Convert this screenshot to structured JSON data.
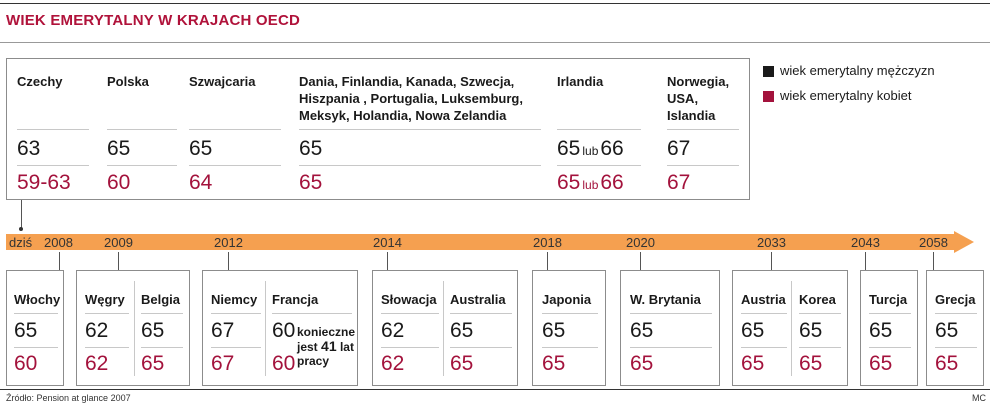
{
  "title": "WIEK EMERYTALNY W KRAJACH OECD",
  "legend": {
    "men_label": "wiek emerytalny mężczyzn",
    "women_label": "wiek emerytalny kobiet",
    "men_color": "#1a1a1a",
    "women_color": "#a3123c"
  },
  "top_countries": [
    {
      "name": "Czechy",
      "men": "63",
      "women": "59-63"
    },
    {
      "name": "Polska",
      "men": "65",
      "women": "60"
    },
    {
      "name": "Szwajcaria",
      "men": "65",
      "women": "64"
    },
    {
      "name": "Dania, Finlandia, Kanada, Szwecja, Hiszpania , Portugalia, Luksemburg, Meksyk, Holandia, Nowa Zelandia",
      "men": "65",
      "women": "65"
    },
    {
      "name": "Irlandia",
      "men_a": "65",
      "men_or": "lub",
      "men_b": "66",
      "women_a": "65",
      "women_or": "lub",
      "women_b": "66"
    },
    {
      "name": "Norwegia, USA, Islandia",
      "men": "67",
      "women": "67"
    }
  ],
  "timeline": {
    "start_label": "dziś",
    "years": [
      "2008",
      "2009",
      "2012",
      "2014",
      "2018",
      "2020",
      "2033",
      "2043",
      "2058"
    ],
    "arrow_color": "#f5a050"
  },
  "bottom_groups": [
    {
      "year": "2008",
      "countries": [
        {
          "name": "Włochy",
          "men": "65",
          "women": "60"
        }
      ]
    },
    {
      "year": "2009",
      "countries": [
        {
          "name": "Węgry",
          "men": "62",
          "women": "62"
        },
        {
          "name": "Belgia",
          "men": "65",
          "women": "65"
        }
      ]
    },
    {
      "year": "2012",
      "countries": [
        {
          "name": "Niemcy",
          "men": "67",
          "women": "67"
        },
        {
          "name": "Francja",
          "men": "60",
          "women": "60",
          "note_a": "konieczne",
          "note_b": "jest",
          "note_bold": "41",
          "note_c": "lat",
          "note_d": "pracy"
        }
      ]
    },
    {
      "year": "2014",
      "countries": [
        {
          "name": "Słowacja",
          "men": "62",
          "women": "62"
        },
        {
          "name": "Australia",
          "men": "65",
          "women": "65"
        }
      ]
    },
    {
      "year": "2018",
      "countries": [
        {
          "name": "Japonia",
          "men": "65",
          "women": "65"
        }
      ]
    },
    {
      "year": "2020",
      "countries": [
        {
          "name": "W. Brytania",
          "men": "65",
          "women": "65"
        }
      ]
    },
    {
      "year": "2033",
      "countries": [
        {
          "name": "Austria",
          "men": "65",
          "women": "65"
        },
        {
          "name": "Korea",
          "men": "65",
          "women": "65"
        }
      ]
    },
    {
      "year": "2043",
      "countries": [
        {
          "name": "Turcja",
          "men": "65",
          "women": "65"
        }
      ]
    },
    {
      "year": "2058",
      "countries": [
        {
          "name": "Grecja",
          "men": "65",
          "women": "65"
        }
      ]
    }
  ],
  "footer": {
    "source": "Źródło: Pension at glance 2007",
    "author": "MC"
  }
}
